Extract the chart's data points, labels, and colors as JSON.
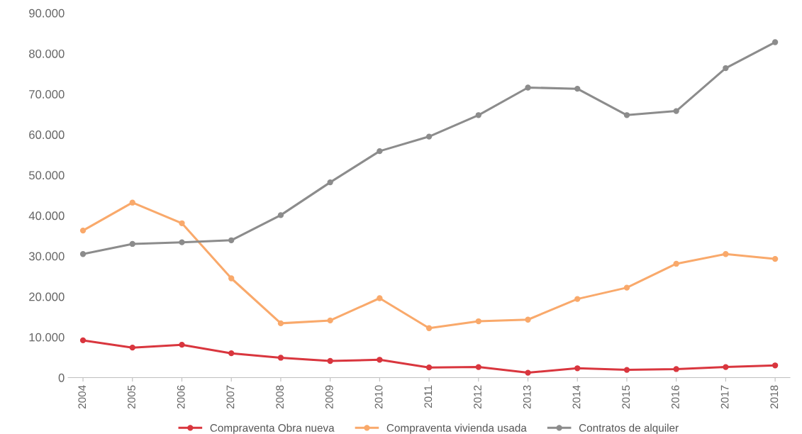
{
  "chart_data": {
    "type": "line",
    "categories": [
      "2004",
      "2005",
      "2006",
      "2007",
      "2008",
      "2009",
      "2010",
      "2011",
      "2012",
      "2013",
      "2014",
      "2015",
      "2016",
      "2017",
      "2018"
    ],
    "series": [
      {
        "name": "Compraventa Obra nueva",
        "color": "#d9363e",
        "values": [
          9200,
          7400,
          8100,
          6000,
          4900,
          4100,
          4400,
          2500,
          2600,
          1200,
          2300,
          1900,
          2100,
          2600,
          3000
        ]
      },
      {
        "name": "Compraventa vivienda usada",
        "color": "#f9a96b",
        "values": [
          36300,
          43200,
          38100,
          24500,
          13400,
          14100,
          19600,
          12200,
          13900,
          14300,
          19400,
          22200,
          28100,
          30500,
          29300
        ]
      },
      {
        "name": "Contratos de alquiler",
        "color": "#8c8c8c",
        "values": [
          30500,
          33000,
          33400,
          33900,
          40100,
          48200,
          55900,
          59500,
          64800,
          71600,
          71300,
          64800,
          65800,
          76400,
          82800
        ]
      }
    ],
    "ylim": [
      0,
      90000
    ],
    "yticks": [
      {
        "value": 0,
        "label": "0"
      },
      {
        "value": 10000,
        "label": "10.000"
      },
      {
        "value": 20000,
        "label": "20.000"
      },
      {
        "value": 30000,
        "label": "30.000"
      },
      {
        "value": 40000,
        "label": "40.000"
      },
      {
        "value": 50000,
        "label": "50.000"
      },
      {
        "value": 60000,
        "label": "60.000"
      },
      {
        "value": 70000,
        "label": "70.000"
      },
      {
        "value": 80000,
        "label": "80.000"
      },
      {
        "value": 90000,
        "label": "90.000"
      }
    ],
    "grid": false,
    "legend": "bottom",
    "marker": "circle",
    "line_style": "solid"
  }
}
